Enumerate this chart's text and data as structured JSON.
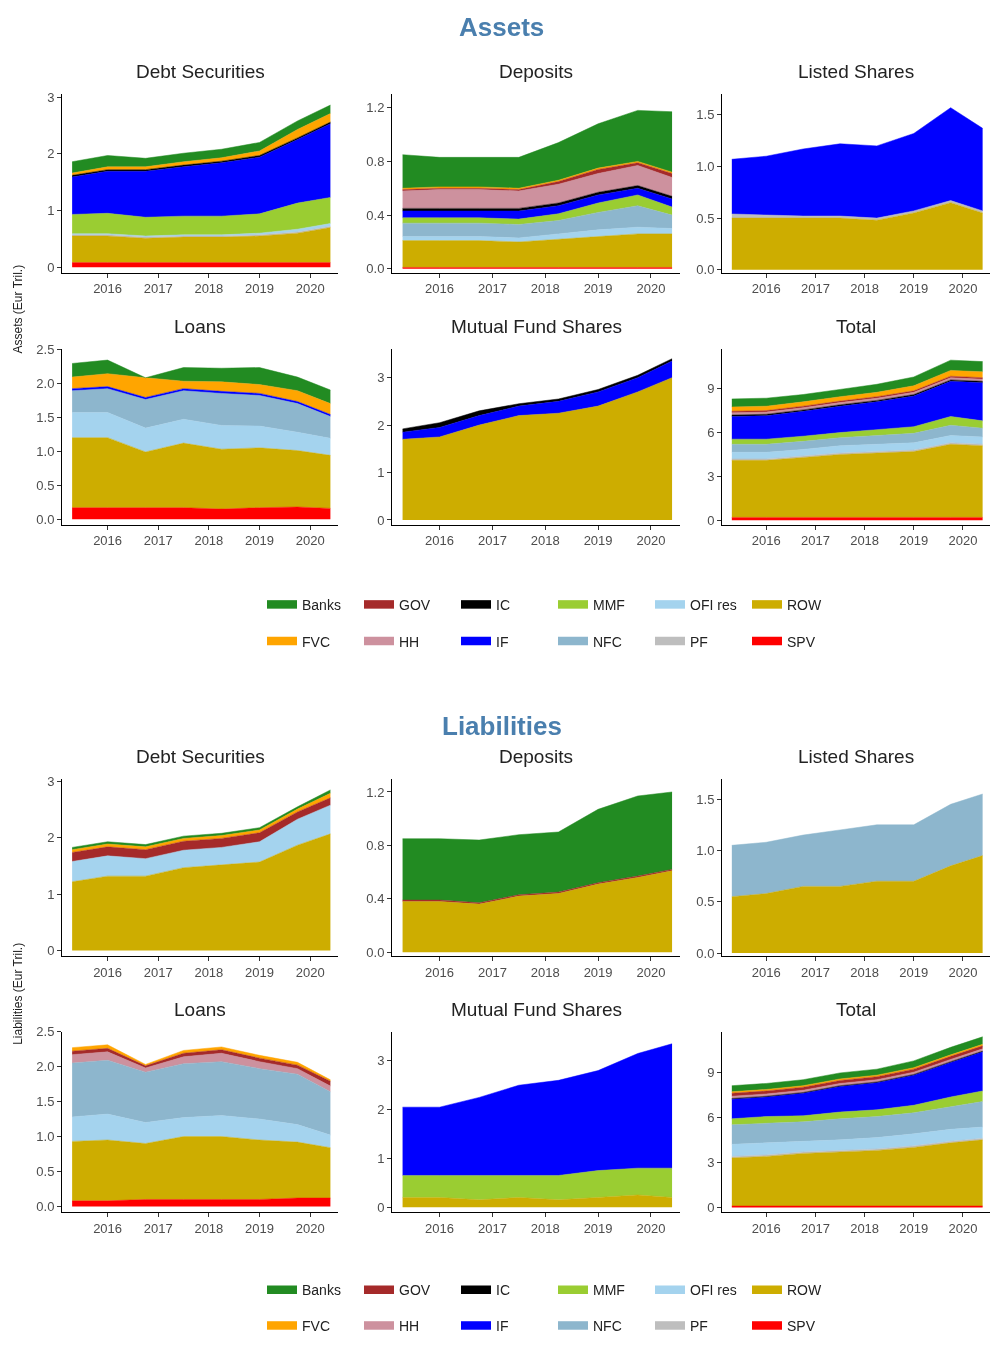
{
  "chart_data": [
    {
      "type": "area",
      "stacked": true,
      "title": "Debt Securities",
      "annotations": [
        "Assets"
      ],
      "ylabel": "Assets (Eur Tril.)",
      "x": [
        2015.3,
        2016,
        2016.75,
        2017.5,
        2018.25,
        2019,
        2019.75,
        2020.4
      ],
      "xlim": [
        2015.1,
        2020.55
      ],
      "xticks": [
        2016,
        2017,
        2018,
        2019,
        2020
      ],
      "ylim": [
        -0.1,
        3.05
      ],
      "yticks": [
        0,
        1,
        2,
        3
      ],
      "series": [
        {
          "color": "#ff0000",
          "values": [
            0.08,
            0.08,
            0.08,
            0.08,
            0.08,
            0.08,
            0.08,
            0.08
          ]
        },
        {
          "color": "#cdad00",
          "values": [
            0.47,
            0.47,
            0.43,
            0.45,
            0.45,
            0.47,
            0.52,
            0.62
          ]
        },
        {
          "color": "#bebebe",
          "values": [
            0.02,
            0.02,
            0.02,
            0.02,
            0.02,
            0.02,
            0.02,
            0.02
          ]
        },
        {
          "color": "#a4d3ee",
          "values": [
            0.02,
            0.02,
            0.02,
            0.02,
            0.02,
            0.03,
            0.05,
            0.05
          ]
        },
        {
          "color": "#9acd32",
          "values": [
            0.34,
            0.36,
            0.33,
            0.33,
            0.33,
            0.34,
            0.46,
            0.46
          ]
        },
        {
          "color": "#0000ff",
          "values": [
            0.66,
            0.74,
            0.81,
            0.87,
            0.94,
            1.0,
            1.12,
            1.3
          ]
        },
        {
          "color": "#000000",
          "values": [
            0.03,
            0.03,
            0.03,
            0.03,
            0.03,
            0.03,
            0.03,
            0.03
          ]
        },
        {
          "color": "#ffa500",
          "values": [
            0.04,
            0.05,
            0.05,
            0.06,
            0.06,
            0.08,
            0.15,
            0.15
          ]
        },
        {
          "color": "#228b22",
          "values": [
            0.2,
            0.2,
            0.15,
            0.15,
            0.15,
            0.15,
            0.15,
            0.15
          ]
        }
      ]
    },
    {
      "type": "area",
      "stacked": true,
      "title": "Deposits",
      "x": [
        2015.3,
        2016,
        2016.75,
        2017.5,
        2018.25,
        2019,
        2019.75,
        2020.4
      ],
      "xlim": [
        2015.1,
        2020.55
      ],
      "xticks": [
        2016,
        2017,
        2018,
        2019,
        2020
      ],
      "ylim": [
        -0.03,
        1.3
      ],
      "yticks": [
        {
          "value": 0,
          "label": "0.0"
        },
        {
          "value": 0.4,
          "label": "0.4"
        },
        {
          "value": 0.8,
          "label": "0.8"
        },
        {
          "value": 1.2,
          "label": "1.2"
        }
      ],
      "series": [
        {
          "color": "#ff0000",
          "values": [
            0.01,
            0.01,
            0.01,
            0.01,
            0.01,
            0.01,
            0.01,
            0.01
          ]
        },
        {
          "color": "#cdad00",
          "values": [
            0.2,
            0.2,
            0.2,
            0.19,
            0.21,
            0.23,
            0.25,
            0.25
          ]
        },
        {
          "color": "#a4d3ee",
          "values": [
            0.03,
            0.03,
            0.03,
            0.03,
            0.04,
            0.05,
            0.05,
            0.04
          ]
        },
        {
          "color": "#8db6cd",
          "values": [
            0.1,
            0.1,
            0.1,
            0.1,
            0.1,
            0.13,
            0.16,
            0.1
          ]
        },
        {
          "color": "#9acd32",
          "values": [
            0.04,
            0.04,
            0.04,
            0.04,
            0.05,
            0.07,
            0.08,
            0.06
          ]
        },
        {
          "color": "#0000ff",
          "values": [
            0.05,
            0.05,
            0.05,
            0.06,
            0.06,
            0.06,
            0.05,
            0.06
          ]
        },
        {
          "color": "#000000",
          "values": [
            0.02,
            0.02,
            0.02,
            0.02,
            0.02,
            0.02,
            0.02,
            0.02
          ]
        },
        {
          "color": "#cd919e",
          "values": [
            0.13,
            0.14,
            0.14,
            0.13,
            0.14,
            0.14,
            0.15,
            0.14
          ]
        },
        {
          "color": "#a52a2a",
          "values": [
            0.01,
            0.01,
            0.01,
            0.01,
            0.02,
            0.03,
            0.02,
            0.03
          ]
        },
        {
          "color": "#ffa500",
          "values": [
            0.01,
            0.01,
            0.01,
            0.01,
            0.01,
            0.01,
            0.01,
            0.01
          ]
        },
        {
          "color": "#228b22",
          "values": [
            0.25,
            0.22,
            0.22,
            0.23,
            0.28,
            0.33,
            0.38,
            0.45
          ]
        }
      ]
    },
    {
      "type": "area",
      "stacked": true,
      "title": "Listed Shares",
      "x": [
        2015.3,
        2016,
        2016.75,
        2017.5,
        2018.25,
        2019,
        2019.75,
        2020.4
      ],
      "xlim": [
        2015.1,
        2020.55
      ],
      "xticks": [
        2016,
        2017,
        2018,
        2019,
        2020
      ],
      "ylim": [
        -0.03,
        1.7
      ],
      "yticks": [
        {
          "value": 0,
          "label": "0.0"
        },
        {
          "value": 0.5,
          "label": "0.5"
        },
        {
          "value": 1,
          "label": "1.0"
        },
        {
          "value": 1.5,
          "label": "1.5"
        }
      ],
      "series": [
        {
          "color": "#cdad00",
          "values": [
            0.5,
            0.5,
            0.5,
            0.5,
            0.48,
            0.55,
            0.65,
            0.55
          ]
        },
        {
          "color": "#bebebe",
          "values": [
            0.04,
            0.03,
            0.02,
            0.02,
            0.02,
            0.02,
            0.02,
            0.02
          ]
        },
        {
          "color": "#0000ff",
          "values": [
            0.53,
            0.57,
            0.65,
            0.7,
            0.7,
            0.75,
            0.9,
            0.8
          ]
        }
      ]
    },
    {
      "type": "area",
      "stacked": true,
      "title": "Loans",
      "x": [
        2015.3,
        2016,
        2016.75,
        2017.5,
        2018.25,
        2019,
        2019.75,
        2020.4
      ],
      "xlim": [
        2015.1,
        2020.55
      ],
      "xticks": [
        2016,
        2017,
        2018,
        2019,
        2020
      ],
      "ylim": [
        -0.08,
        2.5
      ],
      "yticks": [
        {
          "value": 0,
          "label": "0.0"
        },
        {
          "value": 0.5,
          "label": "0.5"
        },
        {
          "value": 1,
          "label": "1.0"
        },
        {
          "value": 1.5,
          "label": "1.5"
        },
        {
          "value": 2,
          "label": "2.0"
        },
        {
          "value": 2.5,
          "label": "2.5"
        }
      ],
      "series": [
        {
          "color": "#ff0000",
          "values": [
            0.17,
            0.17,
            0.17,
            0.17,
            0.15,
            0.17,
            0.18,
            0.16
          ]
        },
        {
          "color": "#cdad00",
          "values": [
            1.03,
            1.03,
            0.82,
            0.95,
            0.88,
            0.88,
            0.83,
            0.78
          ]
        },
        {
          "color": "#a4d3ee",
          "values": [
            0.37,
            0.37,
            0.35,
            0.35,
            0.35,
            0.32,
            0.27,
            0.25
          ]
        },
        {
          "color": "#8db6cd",
          "values": [
            0.32,
            0.35,
            0.42,
            0.42,
            0.47,
            0.45,
            0.42,
            0.32
          ]
        },
        {
          "color": "#0000ff",
          "values": [
            0.03,
            0.03,
            0.03,
            0.03,
            0.03,
            0.03,
            0.03,
            0.03
          ]
        },
        {
          "color": "#ffa500",
          "values": [
            0.17,
            0.19,
            0.29,
            0.11,
            0.14,
            0.13,
            0.16,
            0.16
          ]
        },
        {
          "color": "#228b22",
          "values": [
            0.2,
            0.2,
            0,
            0.2,
            0.2,
            0.25,
            0.2,
            0.2
          ]
        }
      ]
    },
    {
      "type": "area",
      "stacked": true,
      "title": "Mutual Fund Shares",
      "x": [
        2015.3,
        2016,
        2016.75,
        2017.5,
        2018.25,
        2019,
        2019.75,
        2020.4
      ],
      "xlim": [
        2015.1,
        2020.55
      ],
      "xticks": [
        2016,
        2017,
        2018,
        2019,
        2020
      ],
      "ylim": [
        -0.1,
        3.6
      ],
      "yticks": [
        0,
        1,
        2,
        3
      ],
      "series": [
        {
          "color": "#cdad00",
          "values": [
            1.7,
            1.75,
            2.0,
            2.2,
            2.25,
            2.4,
            2.7,
            3.0
          ]
        },
        {
          "color": "#0000ff",
          "values": [
            0.15,
            0.2,
            0.2,
            0.2,
            0.25,
            0.3,
            0.3,
            0.35
          ]
        },
        {
          "color": "#000000",
          "values": [
            0.07,
            0.1,
            0.1,
            0.05,
            0.05,
            0.05,
            0.05,
            0.05
          ]
        }
      ]
    },
    {
      "type": "area",
      "stacked": true,
      "title": "Total",
      "legend": "bottom",
      "x": [
        2015.3,
        2016,
        2016.75,
        2017.5,
        2018.25,
        2019,
        2019.75,
        2020.4
      ],
      "xlim": [
        2015.1,
        2020.55
      ],
      "xticks": [
        2016,
        2017,
        2018,
        2019,
        2020
      ],
      "ylim": [
        -0.3,
        11.7
      ],
      "yticks": [
        0,
        3,
        6,
        9
      ],
      "series": [
        {
          "name": "SPV",
          "color": "#ff0000",
          "values": [
            0.2,
            0.2,
            0.2,
            0.2,
            0.2,
            0.2,
            0.2,
            0.2
          ]
        },
        {
          "name": "ROW",
          "color": "#cdad00",
          "values": [
            3.9,
            3.9,
            4.1,
            4.3,
            4.4,
            4.5,
            5.0,
            4.9
          ]
        },
        {
          "name": "PF",
          "color": "#bebebe",
          "values": [
            0.1,
            0.1,
            0.1,
            0.1,
            0.1,
            0.1,
            0.1,
            0.1
          ]
        },
        {
          "name": "OFI res",
          "color": "#a4d3ee",
          "values": [
            0.45,
            0.45,
            0.45,
            0.5,
            0.5,
            0.5,
            0.5,
            0.5
          ]
        },
        {
          "name": "NFC",
          "color": "#8db6cd",
          "values": [
            0.55,
            0.55,
            0.55,
            0.55,
            0.6,
            0.65,
            0.7,
            0.6
          ]
        },
        {
          "name": "MMF",
          "color": "#9acd32",
          "values": [
            0.35,
            0.35,
            0.35,
            0.35,
            0.4,
            0.45,
            0.6,
            0.5
          ]
        },
        {
          "name": "IF",
          "color": "#0000ff",
          "values": [
            1.55,
            1.6,
            1.7,
            1.8,
            1.9,
            2.1,
            2.4,
            2.6
          ]
        },
        {
          "name": "IC",
          "color": "#000000",
          "values": [
            0.1,
            0.1,
            0.1,
            0.1,
            0.1,
            0.1,
            0.1,
            0.1
          ]
        },
        {
          "name": "HH",
          "color": "#cd919e",
          "values": [
            0.15,
            0.15,
            0.15,
            0.15,
            0.15,
            0.15,
            0.15,
            0.15
          ]
        },
        {
          "name": "GOV",
          "color": "#a52a2a",
          "values": [
            0.1,
            0.1,
            0.1,
            0.1,
            0.1,
            0.1,
            0.1,
            0.1
          ]
        },
        {
          "name": "FVC",
          "color": "#ffa500",
          "values": [
            0.3,
            0.3,
            0.3,
            0.3,
            0.3,
            0.35,
            0.4,
            0.4
          ]
        },
        {
          "name": "Banks",
          "color": "#228b22",
          "values": [
            0.55,
            0.55,
            0.5,
            0.5,
            0.55,
            0.6,
            0.7,
            0.7
          ]
        }
      ]
    },
    {
      "type": "area",
      "stacked": true,
      "title": "Debt Securities",
      "annotations": [
        "Liabilities"
      ],
      "ylabel": "Liabilities (Eur Tril.)",
      "x": [
        2015.3,
        2016,
        2016.75,
        2017.5,
        2018.25,
        2019,
        2019.75,
        2020.4
      ],
      "xlim": [
        2015.1,
        2020.55
      ],
      "xticks": [
        2016,
        2017,
        2018,
        2019,
        2020
      ],
      "ylim": [
        -0.1,
        3.05
      ],
      "yticks": [
        0,
        1,
        2,
        3
      ],
      "series": [
        {
          "color": "#cdad00",
          "values": [
            1.22,
            1.32,
            1.32,
            1.47,
            1.52,
            1.57,
            1.87,
            2.07
          ]
        },
        {
          "color": "#a4d3ee",
          "values": [
            0.36,
            0.36,
            0.31,
            0.31,
            0.31,
            0.36,
            0.46,
            0.51
          ]
        },
        {
          "color": "#a52a2a",
          "values": [
            0.16,
            0.16,
            0.16,
            0.16,
            0.16,
            0.16,
            0.13,
            0.13
          ]
        },
        {
          "color": "#ffa500",
          "values": [
            0.05,
            0.05,
            0.05,
            0.05,
            0.05,
            0.05,
            0.05,
            0.08
          ]
        },
        {
          "color": "#228b22",
          "values": [
            0.04,
            0.04,
            0.04,
            0.04,
            0.04,
            0.04,
            0.04,
            0.06
          ]
        }
      ]
    },
    {
      "type": "area",
      "stacked": true,
      "title": "Deposits",
      "x": [
        2015.3,
        2016,
        2016.75,
        2017.5,
        2018.25,
        2019,
        2019.75,
        2020.4
      ],
      "xlim": [
        2015.1,
        2020.55
      ],
      "xticks": [
        2016,
        2017,
        2018,
        2019,
        2020
      ],
      "ylim": [
        -0.03,
        1.3
      ],
      "yticks": [
        {
          "value": 0,
          "label": "0.0"
        },
        {
          "value": 0.4,
          "label": "0.4"
        },
        {
          "value": 0.8,
          "label": "0.8"
        },
        {
          "value": 1.2,
          "label": "1.2"
        }
      ],
      "series": [
        {
          "color": "#cdad00",
          "values": [
            0.38,
            0.38,
            0.36,
            0.42,
            0.44,
            0.51,
            0.56,
            0.61
          ]
        },
        {
          "color": "#a52a2a",
          "values": [
            0.01,
            0.01,
            0.01,
            0.01,
            0.01,
            0.01,
            0.01,
            0.01
          ]
        },
        {
          "color": "#228b22",
          "values": [
            0.46,
            0.46,
            0.47,
            0.45,
            0.45,
            0.55,
            0.6,
            0.58
          ]
        }
      ]
    },
    {
      "type": "area",
      "stacked": true,
      "title": "Listed Shares",
      "x": [
        2015.3,
        2016,
        2016.75,
        2017.5,
        2018.25,
        2019,
        2019.75,
        2020.4
      ],
      "xlim": [
        2015.1,
        2020.55
      ],
      "xticks": [
        2016,
        2017,
        2018,
        2019,
        2020
      ],
      "ylim": [
        -0.03,
        1.7
      ],
      "yticks": [
        {
          "value": 0,
          "label": "0.0"
        },
        {
          "value": 0.5,
          "label": "0.5"
        },
        {
          "value": 1,
          "label": "1.0"
        },
        {
          "value": 1.5,
          "label": "1.5"
        }
      ],
      "series": [
        {
          "color": "#cdad00",
          "values": [
            0.55,
            0.58,
            0.65,
            0.65,
            0.7,
            0.7,
            0.85,
            0.95
          ]
        },
        {
          "color": "#8db6cd",
          "values": [
            0.5,
            0.5,
            0.5,
            0.55,
            0.55,
            0.55,
            0.6,
            0.6
          ]
        }
      ]
    },
    {
      "type": "area",
      "stacked": true,
      "title": "Loans",
      "x": [
        2015.3,
        2016,
        2016.75,
        2017.5,
        2018.25,
        2019,
        2019.75,
        2020.4
      ],
      "xlim": [
        2015.1,
        2020.55
      ],
      "xticks": [
        2016,
        2017,
        2018,
        2019,
        2020
      ],
      "ylim": [
        -0.08,
        2.5
      ],
      "yticks": [
        {
          "value": 0,
          "label": "0.0"
        },
        {
          "value": 0.5,
          "label": "0.5"
        },
        {
          "value": 1,
          "label": "1.0"
        },
        {
          "value": 1.5,
          "label": "1.5"
        },
        {
          "value": 2,
          "label": "2.0"
        },
        {
          "value": 2.5,
          "label": "2.5"
        }
      ],
      "series": [
        {
          "color": "#ff0000",
          "values": [
            0.08,
            0.08,
            0.1,
            0.1,
            0.1,
            0.1,
            0.12,
            0.12
          ]
        },
        {
          "color": "#cdad00",
          "values": [
            0.85,
            0.87,
            0.8,
            0.9,
            0.9,
            0.85,
            0.8,
            0.72
          ]
        },
        {
          "color": "#a4d3ee",
          "values": [
            0.35,
            0.37,
            0.3,
            0.27,
            0.3,
            0.3,
            0.25,
            0.18
          ]
        },
        {
          "color": "#8db6cd",
          "values": [
            0.77,
            0.77,
            0.72,
            0.77,
            0.77,
            0.72,
            0.72,
            0.62
          ]
        },
        {
          "color": "#cd919e",
          "values": [
            0.12,
            0.12,
            0.06,
            0.1,
            0.12,
            0.1,
            0.08,
            0.08
          ]
        },
        {
          "color": "#a52a2a",
          "values": [
            0.05,
            0.05,
            0.03,
            0.05,
            0.05,
            0.05,
            0.05,
            0.07
          ]
        },
        {
          "color": "#ffa500",
          "values": [
            0.05,
            0.05,
            0.02,
            0.04,
            0.04,
            0.04,
            0.04,
            0.02
          ]
        }
      ]
    },
    {
      "type": "area",
      "stacked": true,
      "title": "Mutual Fund Shares",
      "x": [
        2015.3,
        2016,
        2016.75,
        2017.5,
        2018.25,
        2019,
        2019.75,
        2020.4
      ],
      "xlim": [
        2015.1,
        2020.55
      ],
      "xticks": [
        2016,
        2017,
        2018,
        2019,
        2020
      ],
      "ylim": [
        -0.1,
        3.6
      ],
      "yticks": [
        0,
        1,
        2,
        3
      ],
      "series": [
        {
          "color": "#cdad00",
          "values": [
            0.2,
            0.2,
            0.15,
            0.2,
            0.15,
            0.2,
            0.25,
            0.2
          ]
        },
        {
          "color": "#9acd32",
          "values": [
            0.45,
            0.45,
            0.5,
            0.45,
            0.5,
            0.55,
            0.55,
            0.6
          ]
        },
        {
          "color": "#0000ff",
          "values": [
            1.4,
            1.4,
            1.6,
            1.85,
            1.95,
            2.05,
            2.35,
            2.55
          ]
        }
      ]
    },
    {
      "type": "area",
      "stacked": true,
      "title": "Total",
      "legend": "bottom",
      "x": [
        2015.3,
        2016,
        2016.75,
        2017.5,
        2018.25,
        2019,
        2019.75,
        2020.4
      ],
      "xlim": [
        2015.1,
        2020.55
      ],
      "xticks": [
        2016,
        2017,
        2018,
        2019,
        2020
      ],
      "ylim": [
        -0.3,
        11.7
      ],
      "yticks": [
        0,
        3,
        6,
        9
      ],
      "series": [
        {
          "name": "SPV",
          "color": "#ff0000",
          "values": [
            0.1,
            0.1,
            0.1,
            0.1,
            0.1,
            0.1,
            0.1,
            0.1
          ]
        },
        {
          "name": "ROW",
          "color": "#cdad00",
          "values": [
            3.2,
            3.3,
            3.5,
            3.6,
            3.7,
            3.9,
            4.2,
            4.4
          ]
        },
        {
          "name": "PF",
          "color": "#bebebe",
          "values": [
            0.1,
            0.1,
            0.1,
            0.1,
            0.1,
            0.1,
            0.1,
            0.1
          ]
        },
        {
          "name": "OFI res",
          "color": "#a4d3ee",
          "values": [
            0.8,
            0.8,
            0.7,
            0.7,
            0.75,
            0.8,
            0.8,
            0.75
          ]
        },
        {
          "name": "NFC",
          "color": "#8db6cd",
          "values": [
            1.3,
            1.3,
            1.3,
            1.4,
            1.4,
            1.4,
            1.5,
            1.7
          ]
        },
        {
          "name": "MMF",
          "color": "#9acd32",
          "values": [
            0.4,
            0.45,
            0.4,
            0.45,
            0.45,
            0.5,
            0.65,
            0.7
          ]
        },
        {
          "name": "IF",
          "color": "#0000ff",
          "values": [
            1.3,
            1.3,
            1.5,
            1.7,
            1.8,
            2.0,
            2.3,
            2.6
          ]
        },
        {
          "name": "IC",
          "color": "#000000",
          "values": [
            0.05,
            0.05,
            0.05,
            0.05,
            0.05,
            0.05,
            0.05,
            0.05
          ]
        },
        {
          "name": "HH",
          "color": "#cd919e",
          "values": [
            0.15,
            0.15,
            0.15,
            0.15,
            0.15,
            0.15,
            0.15,
            0.15
          ]
        },
        {
          "name": "GOV",
          "color": "#a52a2a",
          "values": [
            0.2,
            0.2,
            0.2,
            0.2,
            0.2,
            0.2,
            0.2,
            0.2
          ]
        },
        {
          "name": "FVC",
          "color": "#ffa500",
          "values": [
            0.1,
            0.1,
            0.1,
            0.1,
            0.1,
            0.1,
            0.1,
            0.1
          ]
        },
        {
          "name": "Banks",
          "color": "#228b22",
          "values": [
            0.4,
            0.4,
            0.4,
            0.4,
            0.4,
            0.45,
            0.5,
            0.5
          ]
        }
      ]
    }
  ]
}
